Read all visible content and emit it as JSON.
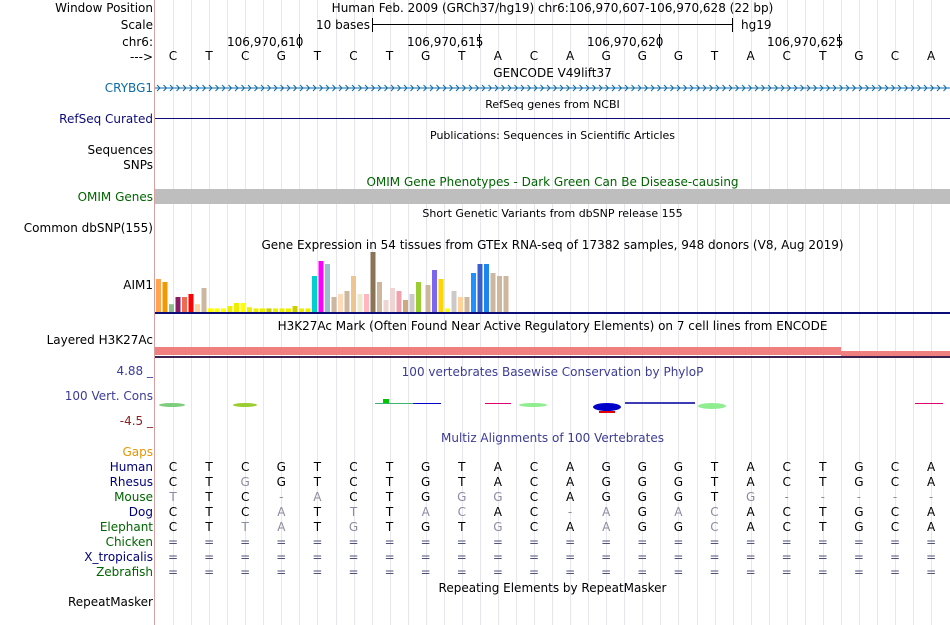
{
  "ruler": {
    "label_window": "Window Position",
    "label_scale": "Scale",
    "label_chr": "chr6:",
    "label_arrow": "--->",
    "position_text": "Human Feb. 2009 (GRCh37/hg19)   chr6:106,970,607-106,970,628 (22 bp)",
    "scale_text": "10 bases",
    "scale_assembly": "hg19",
    "ticks": [
      "106,970,610",
      "106,970,615",
      "106,970,620",
      "106,970,625"
    ]
  },
  "bases": [
    "C",
    "T",
    "C",
    "G",
    "T",
    "C",
    "T",
    "G",
    "T",
    "A",
    "C",
    "A",
    "G",
    "G",
    "G",
    "T",
    "A",
    "C",
    "T",
    "G",
    "C",
    "A"
  ],
  "gencode": {
    "title": "GENCODE V49lift37",
    "gene": "CRYBG1"
  },
  "refseq": {
    "title": "RefSeq genes from NCBI",
    "label": "RefSeq Curated"
  },
  "publications": {
    "title": "Publications: Sequences in Scientific Articles",
    "label1": "Sequences",
    "label2": "SNPs"
  },
  "omim": {
    "title": "OMIM Gene Phenotypes - Dark Green Can Be Disease-causing",
    "label": "OMIM Genes"
  },
  "dbsnp": {
    "title": "Short Genetic Variants from dbSNP release 155",
    "label": "Common dbSNP(155)"
  },
  "gtex": {
    "title": "Gene Expression in 54 tissues from GTEx RNA-seq of 17382 samples, 948 donors (V8, Aug 2019)",
    "label": "AIM1",
    "values": [
      0.55,
      0.5,
      0.13,
      0.25,
      0.25,
      0.3,
      0.13,
      0.4,
      0.06,
      0.06,
      0.06,
      0.1,
      0.15,
      0.15,
      0.08,
      0.06,
      0.06,
      0.06,
      0.06,
      0.06,
      0.06,
      0.1,
      0.06,
      0.06,
      0.6,
      0.85,
      0.8,
      0.25,
      0.3,
      0.35,
      0.6,
      0.3,
      0.3,
      1.0,
      0.5,
      0.2,
      0.4,
      0.35,
      0.2,
      0.3,
      0.5,
      0.45,
      0.7,
      0.55,
      0.06,
      0.35,
      0.25,
      0.25,
      0.65,
      0.8,
      0.8,
      0.65,
      0.6,
      0.6
    ],
    "colors": [
      "#FFA54F",
      "#EE9A00",
      "#8FBC8F",
      "#8B1C62",
      "#EE6A50",
      "#FF0000",
      "#FFD39B",
      "#CDB79E",
      "#FFFF00",
      "#FFFF00",
      "#FFFF00",
      "#EEEE00",
      "#EEEE00",
      "#FFFF00",
      "#EEEE00",
      "#EEEE00",
      "#EEEE00",
      "#CDCD00",
      "#EEEE00",
      "#EEEE00",
      "#EEEE00",
      "#CDCD00",
      "#EEEE00",
      "#EEEE00",
      "#00CED1",
      "#FF00FF",
      "#9AC0CD",
      "#CDB79E",
      "#FFDAB9",
      "#CDB79E",
      "#EEC591",
      "#EEE8CD",
      "#FFB6C1",
      "#8B7355",
      "#CDB79E",
      "#EED5D2",
      "#EED5D2",
      "#EEA2AD",
      "#CDAA7D",
      "#CDC9C9",
      "#9ACD32",
      "#CDB79E",
      "#7A67EE",
      "#FFD700",
      "#FFFF00",
      "#CDC9C9",
      "#FFD39B",
      "#CDB79E",
      "#1E90FF",
      "#3A5FCD",
      "#1C86EE",
      "#CDB79E",
      "#CDB79E",
      "#CDB79E"
    ]
  },
  "h3k27ac": {
    "title": "H3K27Ac Mark (Often Found Near Active Regulatory Elements) on 7 cell lines from ENCODE",
    "label": "Layered H3K27Ac"
  },
  "cons": {
    "title": "100 vertebrates Basewise Conservation by PhyloP",
    "label": "100 Vert. Cons",
    "max": "4.88 _",
    "min": "-4.5 _"
  },
  "multiz": {
    "title": "Multiz Alignments of 100 Vertebrates",
    "gaps_label": "Gaps",
    "species": [
      {
        "name": "Human",
        "seq": [
          "C",
          "T",
          "C",
          "G",
          "T",
          "C",
          "T",
          "G",
          "T",
          "A",
          "C",
          "A",
          "G",
          "G",
          "G",
          "T",
          "A",
          "C",
          "T",
          "G",
          "C",
          "A"
        ]
      },
      {
        "name": "Rhesus",
        "seq": [
          "C",
          "T",
          "G",
          "G",
          "T",
          "C",
          "T",
          "G",
          "T",
          "A",
          "C",
          "A",
          "G",
          "G",
          "G",
          "T",
          "A",
          "C",
          "T",
          "G",
          "C",
          "A"
        ]
      },
      {
        "name": "Mouse",
        "seq": [
          "T",
          "T",
          "C",
          "-",
          "A",
          "C",
          "T",
          "G",
          "G",
          "G",
          "C",
          "A",
          "G",
          "G",
          "G",
          "T",
          "G",
          "-",
          "-",
          "-",
          "-",
          "-"
        ]
      },
      {
        "name": "Dog",
        "seq": [
          "C",
          "T",
          "C",
          "A",
          "T",
          "T",
          "T",
          "A",
          "C",
          "A",
          "C",
          "-",
          "A",
          "G",
          "A",
          "C",
          "A",
          "C",
          "T",
          "G",
          "C",
          "A"
        ]
      },
      {
        "name": "Elephant",
        "seq": [
          "C",
          "T",
          "T",
          "A",
          "T",
          "G",
          "T",
          "G",
          "T",
          "G",
          "C",
          "A",
          "A",
          "G",
          "G",
          "C",
          "A",
          "C",
          "T",
          "G",
          "C",
          "A"
        ]
      },
      {
        "name": "Chicken",
        "seq": [
          "=",
          "=",
          "=",
          "=",
          "=",
          "=",
          "=",
          "=",
          "=",
          "=",
          "=",
          "=",
          "=",
          "=",
          "=",
          "=",
          "=",
          "=",
          "=",
          "=",
          "=",
          "="
        ]
      },
      {
        "name": "X_tropicalis",
        "seq": [
          "=",
          "=",
          "=",
          "=",
          "=",
          "=",
          "=",
          "=",
          "=",
          "=",
          "=",
          "=",
          "=",
          "=",
          "=",
          "=",
          "=",
          "=",
          "=",
          "=",
          "=",
          "="
        ]
      },
      {
        "name": "Zebrafish",
        "seq": [
          "=",
          "=",
          "=",
          "=",
          "=",
          "=",
          "=",
          "=",
          "=",
          "=",
          "=",
          "=",
          "=",
          "=",
          "=",
          "=",
          "=",
          "=",
          "=",
          "=",
          "=",
          "="
        ]
      }
    ]
  },
  "repeat": {
    "title": "Repeating Elements by RepeatMasker",
    "label": "RepeatMasker"
  },
  "colors": {
    "gencode": "#0c6aa8",
    "refseq": "#0c0c78",
    "omim": "#006400",
    "cons": "#3c3c96",
    "gaps": "#e69500",
    "species": "#000078",
    "sep": "#d9a0a0"
  }
}
